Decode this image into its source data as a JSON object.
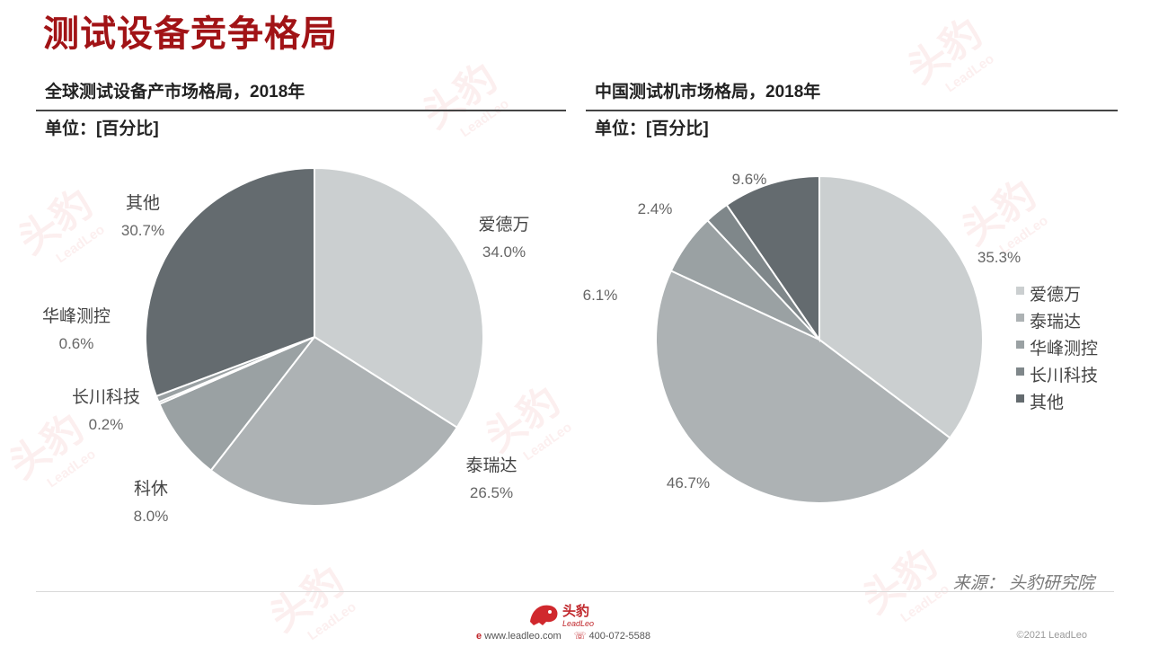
{
  "page_title": "测试设备竞争格局",
  "left_panel": {
    "title": "全球测试设备产市场格局，2018年",
    "unit": "单位：[百分比]"
  },
  "right_panel": {
    "title": "中国测试机市场格局，2018年",
    "unit": "单位：[百分比]"
  },
  "source": "来源：  头豹研究院",
  "footer": {
    "logo_text": "头豹",
    "logo_sub": "LeadLeo",
    "website": "www.leadleo.com",
    "phone": "400-072-5588",
    "copyright": "©2021 LeadLeo"
  },
  "watermark": {
    "main": "头豹",
    "sub": "LeadLeo"
  },
  "colors": {
    "title": "#a11316",
    "爱德万": "#cbcfd0",
    "泰瑞达": "#adb2b4",
    "科休": "#9aa1a3",
    "华峰测控": "#9aa1a3",
    "长川科技": "#7f878a",
    "其他": "#646b6f"
  },
  "chart_data": [
    {
      "type": "pie",
      "title": "全球测试设备产市场格局，2018年",
      "unit": "单位：[百分比]",
      "legend": "none",
      "slices": [
        {
          "label": "爱德万",
          "value": 34.0,
          "display": "34.0%"
        },
        {
          "label": "泰瑞达",
          "value": 26.5,
          "display": "26.5%"
        },
        {
          "label": "科休",
          "value": 8.0,
          "display": "8.0%"
        },
        {
          "label": "长川科技",
          "value": 0.2,
          "display": "0.2%"
        },
        {
          "label": "华峰测控",
          "value": 0.6,
          "display": "0.6%"
        },
        {
          "label": "其他",
          "value": 30.7,
          "display": "30.7%"
        }
      ]
    },
    {
      "type": "pie",
      "title": "中国测试机市场格局，2018年",
      "unit": "单位：[百分比]",
      "legend": "right",
      "slices": [
        {
          "label": "爱德万",
          "value": 35.3,
          "display": "35.3%"
        },
        {
          "label": "泰瑞达",
          "value": 46.7,
          "display": "46.7%"
        },
        {
          "label": "华峰测控",
          "value": 6.1,
          "display": "6.1%"
        },
        {
          "label": "长川科技",
          "value": 2.4,
          "display": "2.4%"
        },
        {
          "label": "其他",
          "value": 9.6,
          "display": "9.6%"
        }
      ],
      "legend_items": [
        "爱德万",
        "泰瑞达",
        "华峰测控",
        "长川科技",
        "其他"
      ]
    }
  ]
}
